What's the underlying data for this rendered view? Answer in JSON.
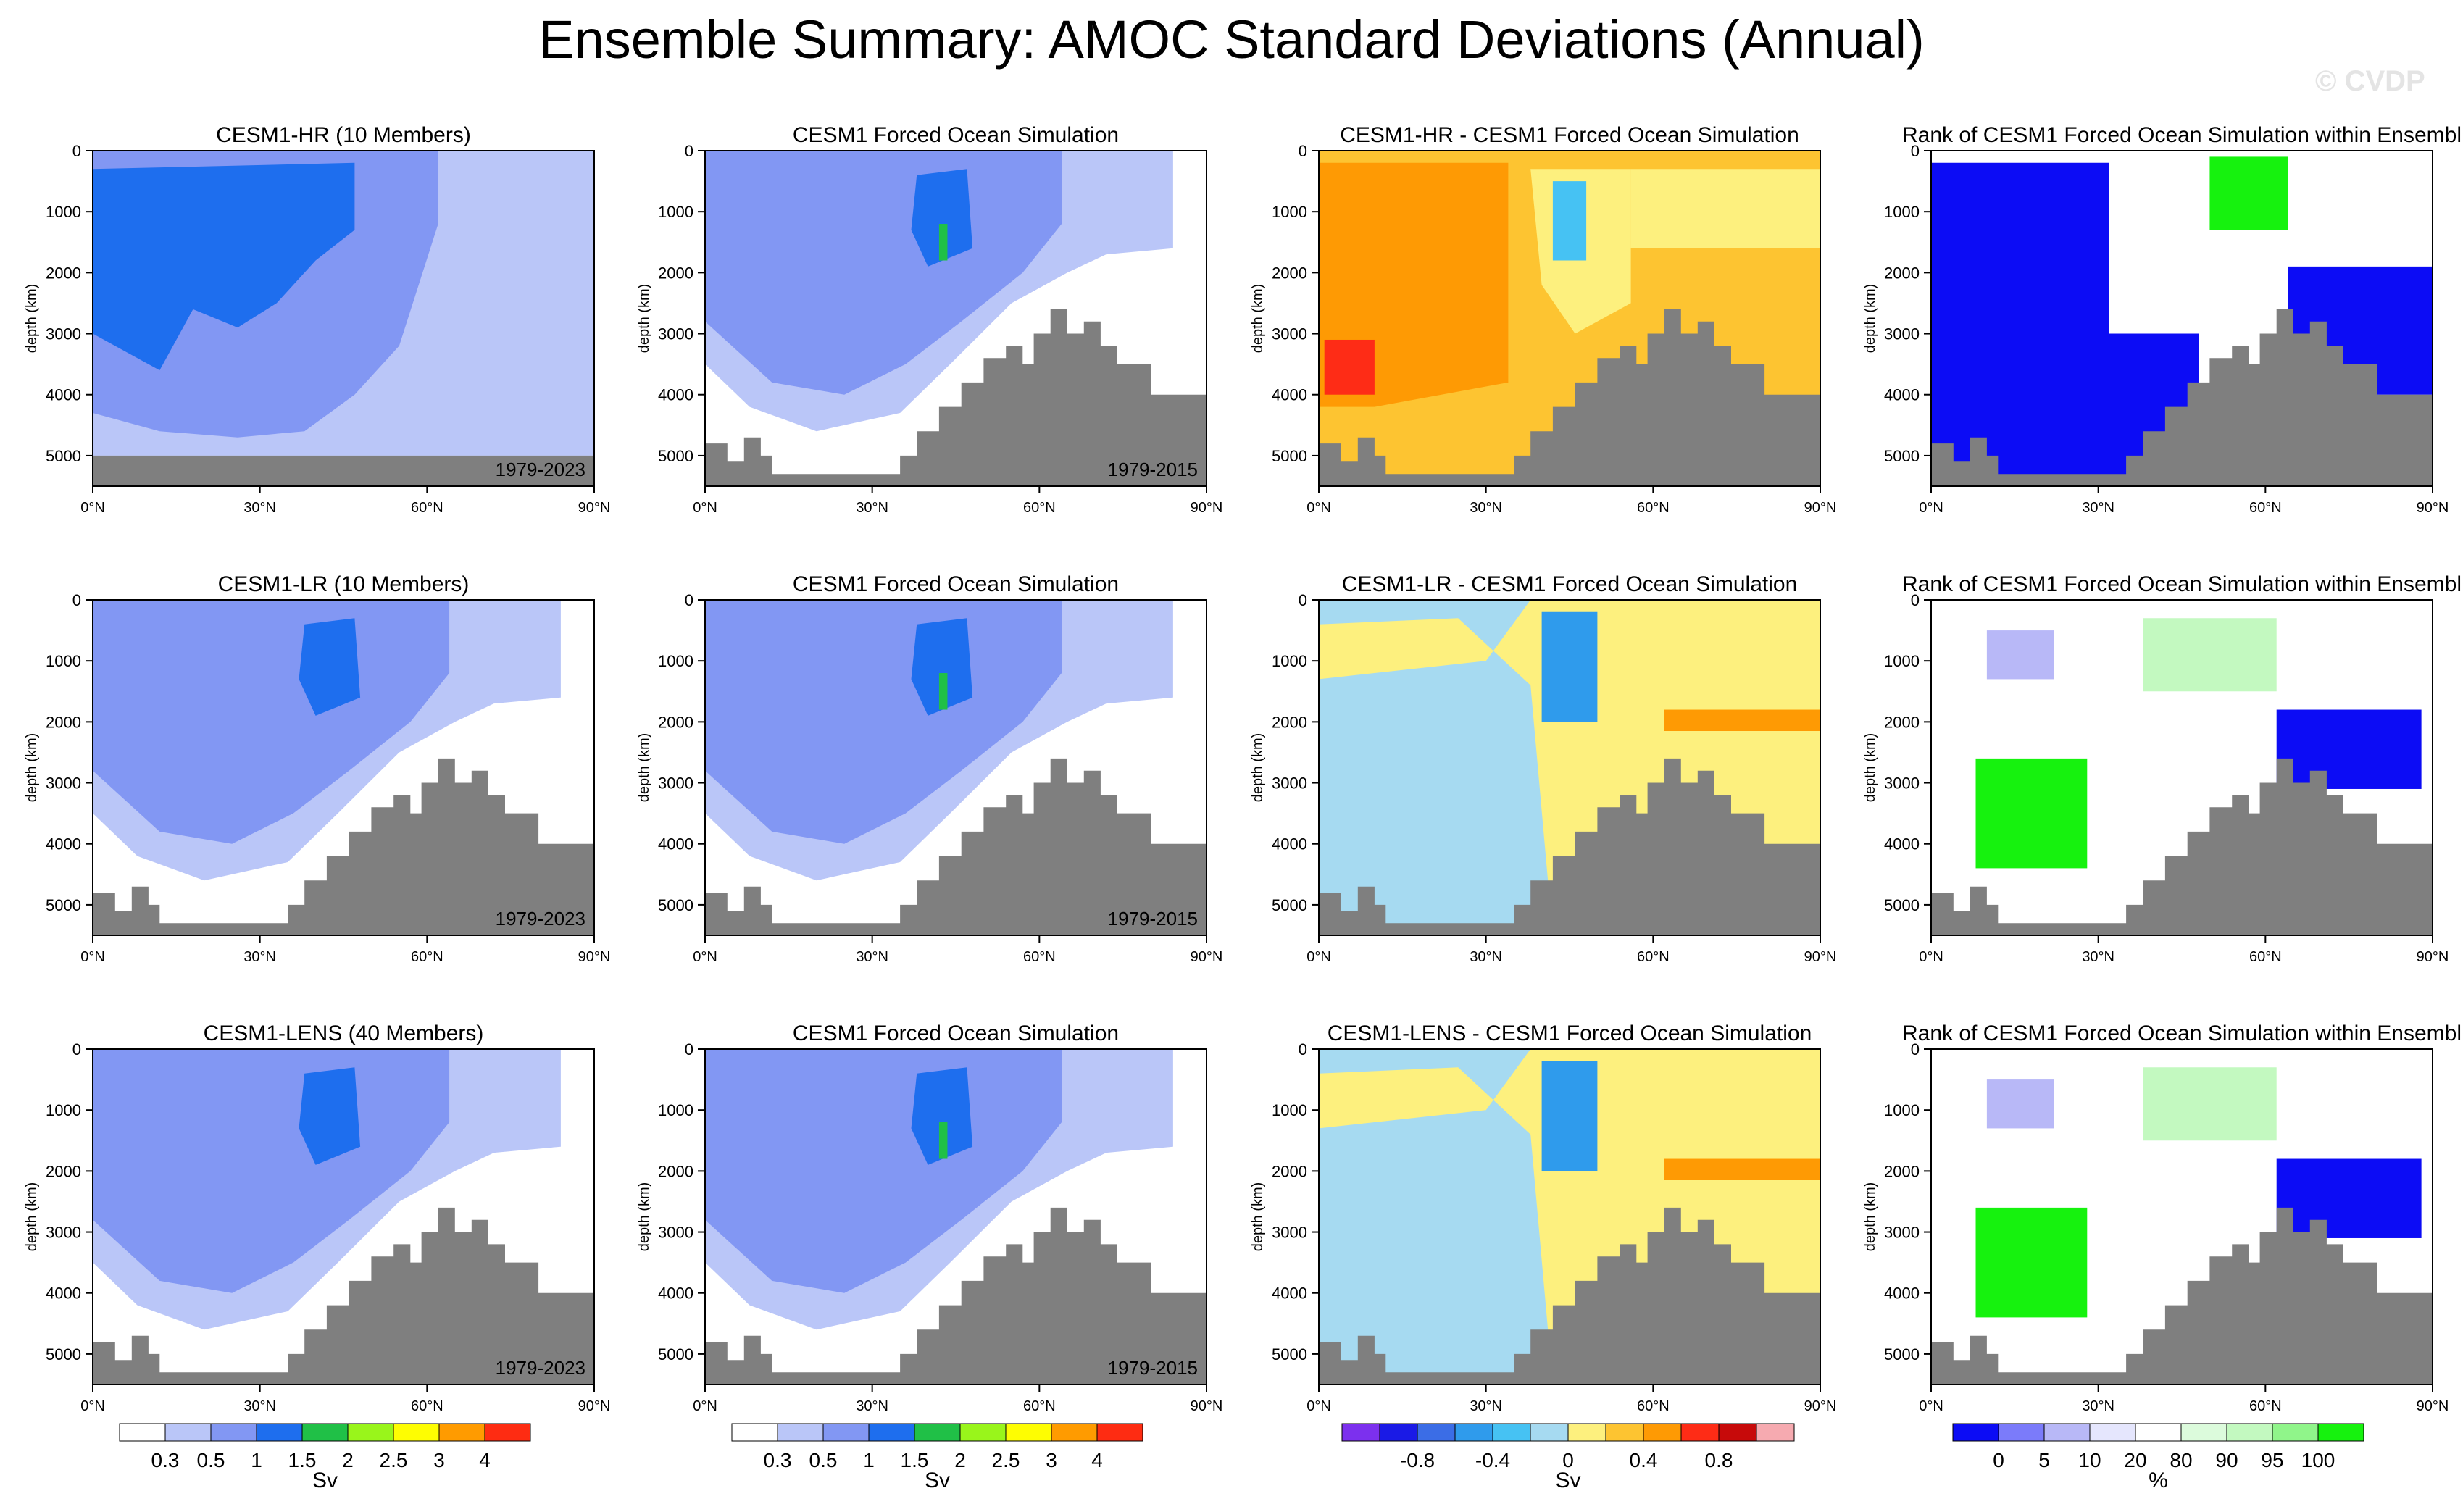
{
  "title": "Ensemble Summary: AMOC Standard Deviations (Annual)",
  "watermark": "© CVDP",
  "axes": {
    "ylabel": "depth (km)",
    "yticks": [
      0,
      1000,
      2000,
      3000,
      4000,
      5000
    ],
    "xticks": [
      "0°N",
      "30°N",
      "60°N",
      "90°N"
    ],
    "xlim": [
      0,
      90
    ],
    "ylim": [
      0,
      5500
    ]
  },
  "colors": {
    "bathymetry": "#7f7f7f",
    "sv": [
      "#ffffff",
      "#bac6f8",
      "#8297f3",
      "#1e6eee",
      "#20c047",
      "#99f51b",
      "#fefd02",
      "#ff9b00",
      "#fe2c12"
    ],
    "diff": [
      "#7c30ee",
      "#1a1ae6",
      "#3b6de6",
      "#2f9bec",
      "#46c2f3",
      "#a6daf1",
      "#fdf07e",
      "#fdc431",
      "#fe9a04",
      "#fe2c16",
      "#c70a0a",
      "#f6aab0"
    ],
    "rank": [
      "#0c0cf5",
      "#7b7bfa",
      "#b8b8f7",
      "#e5e6fd",
      "#ffffff",
      "#dcfbdc",
      "#c3f9c0",
      "#90f58a",
      "#16f20e"
    ]
  },
  "legends": {
    "sv": {
      "labels": [
        "0.3",
        "0.5",
        "1",
        "1.5",
        "2",
        "2.5",
        "3",
        "4"
      ],
      "units": "Sv"
    },
    "diff": {
      "labels": [
        "-0.8",
        "-0.4",
        "0",
        "0.4",
        "0.8"
      ],
      "units": "Sv"
    },
    "rank": {
      "labels": [
        "0",
        "5",
        "10",
        "20",
        "80",
        "90",
        "95",
        "100"
      ],
      "units": "%"
    }
  },
  "chart_data": [
    {
      "type": "heatmap",
      "panel": "1-1",
      "kind": "sv",
      "title": "CESM1-HR (10 Members)",
      "period": "1979-2023",
      "xlabel": "",
      "ylabel": "depth (km)"
    },
    {
      "type": "heatmap",
      "panel": "1-2",
      "kind": "sv",
      "title": "CESM1 Forced Ocean Simulation",
      "period": "1979-2015",
      "xlabel": "",
      "ylabel": "depth (km)"
    },
    {
      "type": "heatmap",
      "panel": "1-3",
      "kind": "diff",
      "title": "CESM1-HR - CESM1 Forced Ocean Simulation",
      "period": "",
      "xlabel": "",
      "ylabel": "depth (km)"
    },
    {
      "type": "heatmap",
      "panel": "1-4",
      "kind": "rank",
      "title": "Rank of CESM1 Forced Ocean Simulation within Ensembl",
      "period": "",
      "xlabel": "",
      "ylabel": "depth (km)"
    },
    {
      "type": "heatmap",
      "panel": "2-1",
      "kind": "sv",
      "title": "CESM1-LR (10 Members)",
      "period": "1979-2023",
      "xlabel": "",
      "ylabel": "depth (km)"
    },
    {
      "type": "heatmap",
      "panel": "2-2",
      "kind": "sv",
      "title": "CESM1 Forced Ocean Simulation",
      "period": "1979-2015",
      "xlabel": "",
      "ylabel": "depth (km)"
    },
    {
      "type": "heatmap",
      "panel": "2-3",
      "kind": "diff",
      "title": "CESM1-LR - CESM1 Forced Ocean Simulation",
      "period": "",
      "xlabel": "",
      "ylabel": "depth (km)"
    },
    {
      "type": "heatmap",
      "panel": "2-4",
      "kind": "rank",
      "title": "Rank of CESM1 Forced Ocean Simulation within Ensembl",
      "period": "",
      "xlabel": "",
      "ylabel": "depth (km)"
    },
    {
      "type": "heatmap",
      "panel": "3-1",
      "kind": "sv",
      "title": "CESM1-LENS (40 Members)",
      "period": "1979-2023",
      "xlabel": "",
      "ylabel": "depth (km)"
    },
    {
      "type": "heatmap",
      "panel": "3-2",
      "kind": "sv",
      "title": "CESM1 Forced Ocean Simulation",
      "period": "1979-2015",
      "xlabel": "",
      "ylabel": "depth (km)"
    },
    {
      "type": "heatmap",
      "panel": "3-3",
      "kind": "diff",
      "title": "CESM1-LENS - CESM1 Forced Ocean Simulation",
      "period": "",
      "xlabel": "",
      "ylabel": "depth (km)"
    },
    {
      "type": "heatmap",
      "panel": "3-4",
      "kind": "rank",
      "title": "Rank of CESM1 Forced Ocean Simulation within Ensembl",
      "period": "",
      "xlabel": "",
      "ylabel": "depth (km)"
    }
  ]
}
